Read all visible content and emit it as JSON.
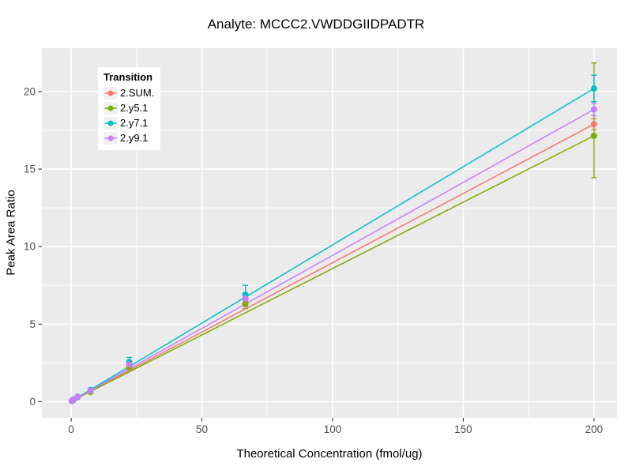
{
  "chart_data": {
    "type": "scatter-line-errorbar",
    "title": "Analyte: MCCC2.VWDDGIIDPADTR",
    "xlabel": "Theoretical Concentration (fmol/ug)",
    "ylabel": "Peak Area Ratio",
    "legend_title": "Transition",
    "legend_position": "top-left-inside",
    "grid": true,
    "x_ticks": [
      0,
      50,
      100,
      150,
      200
    ],
    "x_minor_ticks": [
      25,
      75,
      125,
      175
    ],
    "y_ticks": [
      0,
      5,
      10,
      15,
      20
    ],
    "y_minor_ticks": [
      2.5,
      7.5,
      12.5,
      17.5
    ],
    "xlim": [
      -11.2,
      208.8
    ],
    "ylim": [
      -1.05,
      22.8
    ],
    "x": [
      0.27,
      0.82,
      2.47,
      7.41,
      22.22,
      66.67,
      200
    ],
    "series": [
      {
        "name": "2.SUM.",
        "color": "#F8766D",
        "values": [
          0.05,
          0.12,
          0.3,
          0.66,
          2.2,
          6.4,
          17.9
        ],
        "err_lo": [
          0.05,
          0.12,
          0.3,
          0.6,
          2.05,
          6.15,
          17.55
        ],
        "err_hi": [
          0.05,
          0.12,
          0.3,
          0.72,
          2.35,
          6.65,
          18.25
        ],
        "fit_line": {
          "x": [
            0,
            200
          ],
          "y": [
            0.02,
            17.9
          ]
        }
      },
      {
        "name": "2.y5.1",
        "color": "#7CAE00",
        "values": [
          0.04,
          0.1,
          0.28,
          0.62,
          2.25,
          6.3,
          17.15
        ],
        "err_lo": [
          0.04,
          0.1,
          0.28,
          0.56,
          2.1,
          6.0,
          14.45
        ],
        "err_hi": [
          0.04,
          0.1,
          0.28,
          0.68,
          2.4,
          6.6,
          21.85
        ],
        "fit_line": {
          "x": [
            0,
            200
          ],
          "y": [
            0.02,
            17.15
          ]
        }
      },
      {
        "name": "2.y7.1",
        "color": "#00BFC4",
        "values": [
          0.05,
          0.13,
          0.32,
          0.75,
          2.55,
          6.9,
          20.2
        ],
        "err_lo": [
          0.05,
          0.13,
          0.32,
          0.68,
          2.3,
          6.4,
          19.35
        ],
        "err_hi": [
          0.05,
          0.13,
          0.32,
          0.82,
          2.85,
          7.5,
          21.05
        ],
        "fit_line": {
          "x": [
            0,
            200
          ],
          "y": [
            0.02,
            20.2
          ]
        }
      },
      {
        "name": "2.y9.1",
        "color": "#C77CFF",
        "values": [
          0.05,
          0.12,
          0.31,
          0.7,
          2.4,
          6.65,
          18.85
        ],
        "err_lo": [
          0.05,
          0.12,
          0.31,
          0.64,
          2.25,
          6.4,
          18.45
        ],
        "err_hi": [
          0.05,
          0.12,
          0.31,
          0.76,
          2.55,
          6.9,
          19.25
        ],
        "fit_line": {
          "x": [
            0,
            200
          ],
          "y": [
            0.02,
            18.85
          ]
        }
      }
    ]
  },
  "style": {
    "panel_bg": "#EBEBEB",
    "grid_color": "#FFFFFF",
    "tick_mark_color": "#333333",
    "tick_label_color": "#4D4D4D",
    "legend_key_bg": "#F0F0F0"
  }
}
